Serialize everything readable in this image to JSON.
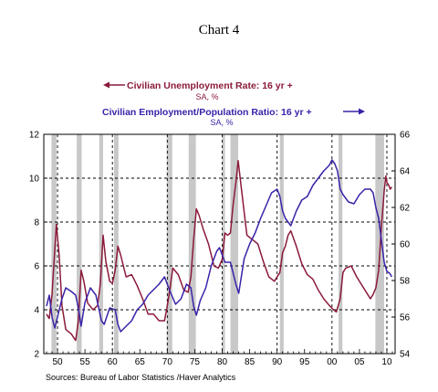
{
  "chart_data": {
    "type": "line",
    "title": "Chart 4",
    "source": "Sources:  Bureau of Labor Statistics /Haver Analytics",
    "x_ticks": [
      "50",
      "55",
      "60",
      "65",
      "70",
      "75",
      "80",
      "85",
      "90",
      "95",
      "00",
      "05",
      "10"
    ],
    "x_tick_years": [
      1950,
      1955,
      1960,
      1965,
      1970,
      1975,
      1980,
      1985,
      1990,
      1995,
      2000,
      2005,
      2010
    ],
    "xlim": [
      1947.5,
      2011.5
    ],
    "recessions": [
      [
        1948.9,
        1949.8
      ],
      [
        1953.5,
        1954.4
      ],
      [
        1957.6,
        1958.3
      ],
      [
        1960.3,
        1961.1
      ],
      [
        1969.9,
        1970.9
      ],
      [
        1973.9,
        1975.2
      ],
      [
        1980.0,
        1980.5
      ],
      [
        1981.5,
        1982.9
      ],
      [
        1990.5,
        1991.2
      ],
      [
        2001.2,
        2001.9
      ],
      [
        2007.9,
        2009.5
      ]
    ],
    "dashed_verticals": [
      1950,
      1960,
      1970,
      1980,
      1990,
      2000,
      2010
    ],
    "dashed_horizontals_left": [
      4,
      6,
      8,
      10
    ],
    "left_axis": {
      "ylim": [
        2,
        12
      ],
      "ticks": [
        "2",
        "4",
        "6",
        "8",
        "10",
        "12"
      ]
    },
    "right_axis": {
      "ylim": [
        54,
        66
      ],
      "ticks": [
        "54",
        "56",
        "58",
        "60",
        "62",
        "64",
        "66"
      ]
    },
    "series": [
      {
        "name": "Civilian Unemployment Rate: 16 yr +",
        "sub": "SA, %",
        "axis": "left",
        "color": "#8b1a3a",
        "x": [
          1948.0,
          1948.5,
          1949.0,
          1949.5,
          1949.8,
          1950.3,
          1950.8,
          1951.5,
          1952.5,
          1953.3,
          1953.8,
          1954.3,
          1954.8,
          1955.5,
          1956.5,
          1957.3,
          1957.8,
          1958.3,
          1958.8,
          1959.5,
          1960.0,
          1960.5,
          1961.0,
          1961.5,
          1962.5,
          1963.5,
          1964.5,
          1965.5,
          1966.5,
          1967.5,
          1968.5,
          1969.5,
          1970.0,
          1970.5,
          1971.0,
          1972.0,
          1973.0,
          1973.8,
          1974.3,
          1974.8,
          1975.3,
          1975.8,
          1976.5,
          1977.5,
          1978.5,
          1979.3,
          1980.0,
          1980.5,
          1981.0,
          1981.5,
          1982.0,
          1982.5,
          1982.9,
          1983.5,
          1984.5,
          1985.5,
          1986.5,
          1987.5,
          1988.5,
          1989.5,
          1990.5,
          1991.0,
          1991.5,
          1992.0,
          1992.5,
          1993.5,
          1994.5,
          1995.5,
          1996.5,
          1997.5,
          1998.5,
          1999.5,
          2000.3,
          2000.8,
          2001.5,
          2002.0,
          2002.5,
          2003.5,
          2004.5,
          2005.5,
          2006.5,
          2007.0,
          2007.5,
          2008.0,
          2008.5,
          2009.0,
          2009.5,
          2009.8,
          2010.0,
          2010.3,
          2010.6,
          2010.9
        ],
        "values": [
          3.8,
          3.6,
          4.7,
          6.7,
          7.9,
          6.5,
          4.2,
          3.1,
          2.9,
          2.6,
          3.5,
          5.8,
          5.3,
          4.3,
          4.0,
          4.2,
          5.2,
          7.4,
          6.2,
          5.3,
          5.2,
          5.8,
          6.9,
          6.5,
          5.5,
          5.6,
          5.1,
          4.5,
          3.8,
          3.8,
          3.5,
          3.5,
          4.2,
          5.0,
          5.9,
          5.6,
          4.9,
          4.8,
          5.5,
          7.2,
          8.6,
          8.3,
          7.7,
          7.0,
          6.0,
          5.9,
          6.3,
          7.5,
          7.4,
          7.5,
          8.8,
          9.8,
          10.8,
          9.5,
          7.4,
          7.2,
          7.0,
          6.2,
          5.5,
          5.3,
          5.7,
          6.6,
          6.9,
          7.4,
          7.6,
          6.9,
          6.1,
          5.6,
          5.4,
          4.9,
          4.5,
          4.2,
          4.0,
          3.9,
          4.5,
          5.7,
          5.9,
          6.0,
          5.5,
          5.1,
          4.7,
          4.5,
          4.7,
          5.0,
          5.8,
          7.8,
          9.4,
          10.1,
          9.8,
          9.7,
          9.5,
          9.6
        ]
      },
      {
        "name": "Civilian Employment/Population Ratio: 16 yr +",
        "sub": "SA, %",
        "axis": "right",
        "color": "#3b22a8",
        "x": [
          1948.0,
          1948.5,
          1949.0,
          1949.5,
          1950.0,
          1950.8,
          1951.5,
          1952.5,
          1953.3,
          1953.8,
          1954.3,
          1955.0,
          1956.0,
          1957.0,
          1958.0,
          1958.5,
          1959.5,
          1960.5,
          1961.0,
          1961.5,
          1962.5,
          1963.5,
          1964.5,
          1965.5,
          1966.5,
          1967.5,
          1968.5,
          1969.5,
          1970.5,
          1971.5,
          1972.5,
          1973.5,
          1974.3,
          1974.8,
          1975.3,
          1976.0,
          1977.0,
          1978.0,
          1979.0,
          1979.5,
          1980.5,
          1981.5,
          1982.5,
          1983.0,
          1984.0,
          1985.0,
          1986.0,
          1987.0,
          1988.0,
          1989.0,
          1990.0,
          1990.5,
          1991.0,
          1991.5,
          1992.5,
          1993.5,
          1994.5,
          1995.5,
          1996.5,
          1997.5,
          1998.5,
          1999.5,
          2000.0,
          2000.5,
          2001.0,
          2001.5,
          2002.0,
          2003.0,
          2004.0,
          2005.0,
          2006.0,
          2007.0,
          2007.5,
          2008.0,
          2008.5,
          2009.0,
          2009.5,
          2010.0,
          2010.5,
          2010.9
        ],
        "values": [
          56.6,
          57.2,
          56.0,
          55.4,
          56.0,
          57.0,
          57.6,
          57.4,
          57.2,
          56.5,
          55.5,
          56.8,
          57.6,
          57.2,
          55.8,
          55.6,
          56.5,
          56.4,
          55.6,
          55.2,
          55.5,
          55.8,
          56.4,
          56.7,
          57.2,
          57.5,
          57.8,
          58.2,
          57.4,
          56.7,
          57.0,
          57.8,
          57.6,
          56.6,
          56.1,
          56.9,
          57.6,
          58.8,
          59.6,
          59.8,
          59.0,
          59.0,
          57.8,
          57.3,
          59.2,
          60.0,
          60.6,
          61.4,
          62.1,
          62.8,
          63.0,
          62.6,
          61.8,
          61.4,
          61.0,
          61.8,
          62.4,
          62.6,
          63.2,
          63.6,
          64.0,
          64.3,
          64.6,
          64.4,
          64.0,
          63.0,
          62.7,
          62.3,
          62.2,
          62.7,
          63.0,
          63.0,
          62.8,
          62.0,
          61.4,
          60.2,
          59.0,
          58.5,
          58.4,
          58.2
        ]
      }
    ]
  }
}
